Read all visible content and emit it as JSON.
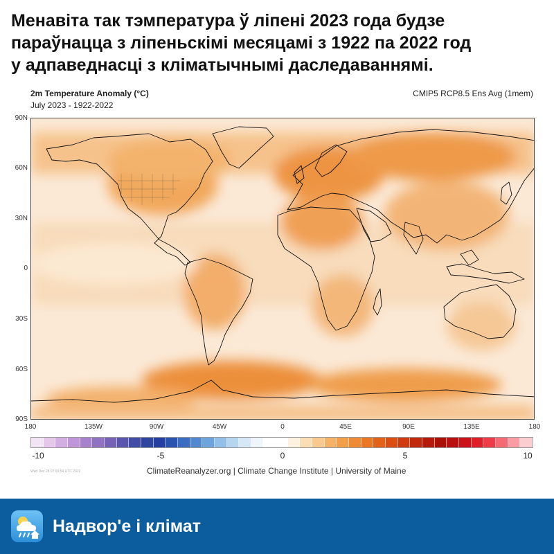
{
  "headline": {
    "line1": "Менавіта так тэмпература ў ліпені 2023 года будзе",
    "line2": "параўнацца з ліпеньскімі месяцамі з 1922 па 2022 год",
    "line3": "у адпаведнасці з кліматычнымі даследаваннямі."
  },
  "map": {
    "title": "2m Temperature Anomaly (°C)",
    "subtitle": "July 2023 - 1922-2022",
    "model": "CMIP5 RCP8.5 Ens Avg (1mem)",
    "lat_labels": [
      "90N",
      "60N",
      "30N",
      "0",
      "30S",
      "60S",
      "90S"
    ],
    "lon_labels": [
      "180",
      "135W",
      "90W",
      "45W",
      "0",
      "45E",
      "90E",
      "135E",
      "180"
    ],
    "overall_tone": "mostly warm anomaly (orange), strongest over Europe, Siberia, North America interior and the Southern Ocean"
  },
  "colorbar": {
    "min_label": "-10",
    "mid_low_label": "-5",
    "zero_label": "0",
    "mid_high_label": "5",
    "max_label": "10",
    "colors": [
      "#f3e4f5",
      "#e5c8ec",
      "#d3aee3",
      "#c095da",
      "#a681cc",
      "#8f72c0",
      "#7663b6",
      "#5b56ad",
      "#414ca5",
      "#2f45a0",
      "#243f9f",
      "#2a52b0",
      "#3a6cc2",
      "#5188d0",
      "#6ea4dc",
      "#91bfe6",
      "#b6d6ef",
      "#d6e8f6",
      "#eef5fb",
      "#ffffff",
      "#ffffff",
      "#fdf1e0",
      "#fbddb6",
      "#f9c98d",
      "#f6b367",
      "#f29f4a",
      "#ee8b34",
      "#e97724",
      "#e3621a",
      "#da4d13",
      "#cf3a0f",
      "#c2290c",
      "#b41b0a",
      "#a81008",
      "#b80f10",
      "#cb121a",
      "#df1e2a",
      "#ee3d48",
      "#f56b74",
      "#f99ca3",
      "#fccdd0"
    ]
  },
  "credits": "ClimateReanalyzer.org | Climate Change Institute | University of Maine",
  "timestamp": "Wed Dec 28 07:03:54 UTC 2022",
  "footer": {
    "name": "Надвор'е і клімат",
    "background": "#0b5d9e",
    "icon": "weather-cloud-sun-rain-icon"
  },
  "colors": {
    "ocean_base": "#fbe9d6",
    "warm_light": "#f8cfa0",
    "warm_mid": "#f2ab66",
    "warm_strong": "#eb8c32"
  }
}
